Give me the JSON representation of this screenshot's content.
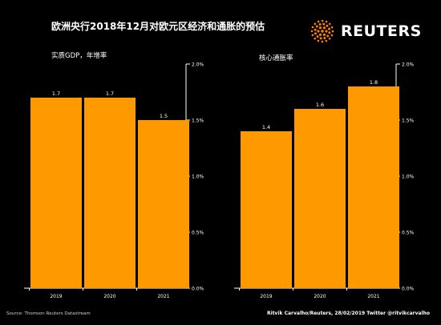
{
  "title": "欧洲央行2018年12月对欧元区经济和通胀的预估",
  "logo": {
    "text": "REUTERS",
    "icon": "reuters-dots-logo-icon",
    "color": "#FF8000"
  },
  "colors": {
    "bar": "#FF9900",
    "background": "#000000",
    "text": "#FFFFFF",
    "axis": "#FFFFFF"
  },
  "source": "Source: Thomson Reuters Datastream",
  "credit": "Ritvik Carvalho/Reuters, 28/02/2019 Twitter @ritvikcarvalho",
  "chart_data": [
    {
      "type": "bar",
      "title": "实质GDP，年增率",
      "categories": [
        "2019",
        "2020",
        "2021"
      ],
      "values": [
        1.7,
        1.7,
        1.5
      ],
      "data_labels": [
        "1.7",
        "1.7",
        "1.5"
      ],
      "ylim": [
        0,
        2.0
      ],
      "yticks": [
        0.0,
        0.5,
        1.0,
        1.5,
        2.0
      ],
      "ytick_labels": [
        "0.0%",
        "0.5%",
        "1.0%",
        "1.5%",
        "2.0%"
      ],
      "y_axis_side": "right",
      "grid": false
    },
    {
      "type": "bar",
      "title": "核心通胀率",
      "categories": [
        "2019",
        "2020",
        "2021"
      ],
      "values": [
        1.4,
        1.6,
        1.8
      ],
      "data_labels": [
        "1.4",
        "1.6",
        "1.8"
      ],
      "ylim": [
        0,
        2.0
      ],
      "yticks": [
        0.0,
        0.5,
        1.0,
        1.5,
        2.0
      ],
      "ytick_labels": [
        "0.0%",
        "0.5%",
        "1.0%",
        "1.5%",
        "2.0%"
      ],
      "y_axis_side": "right",
      "grid": false
    }
  ]
}
